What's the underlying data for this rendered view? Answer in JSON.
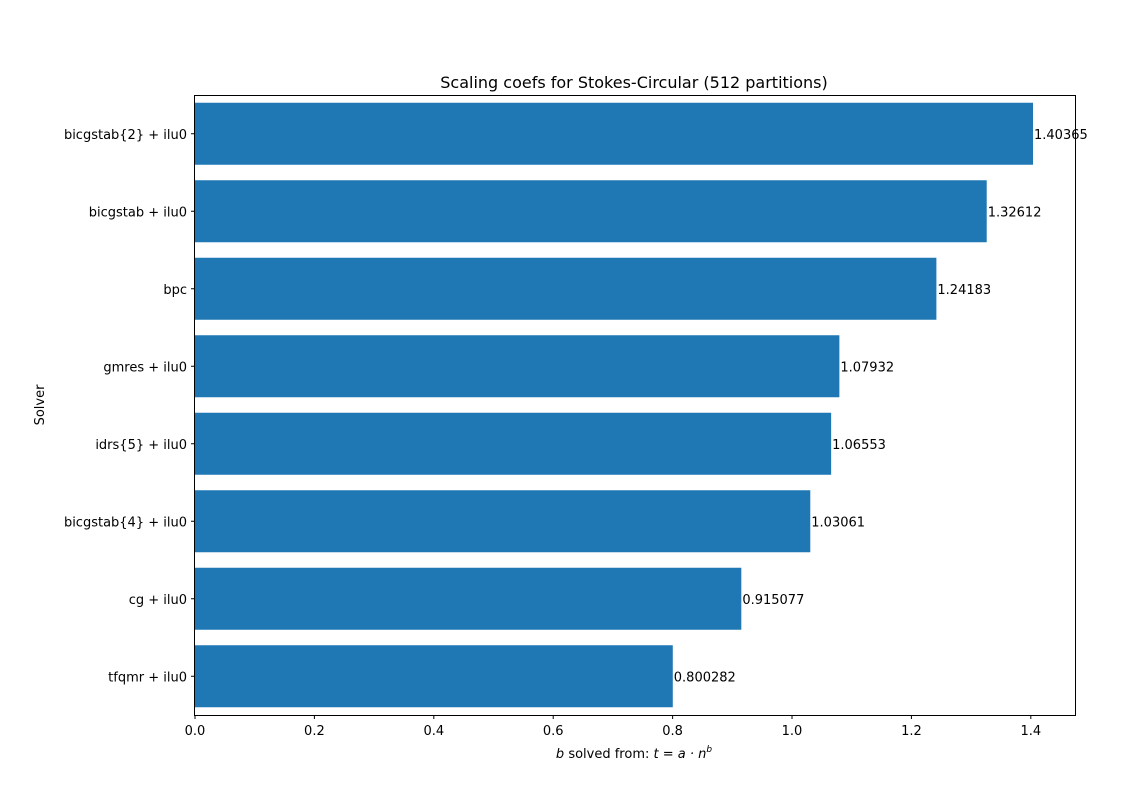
{
  "chart_data": {
    "type": "bar",
    "orientation": "horizontal",
    "title": "Scaling coefs for Stokes-Circular (512 partitions)",
    "xlabel": {
      "italic_var": "b",
      "text": " solved from: ",
      "equation": "t = a · n",
      "exponent": "b"
    },
    "ylabel": "Solver",
    "categories": [
      "bicgstab{2} + ilu0",
      "bicgstab + ilu0",
      "bpc",
      "gmres + ilu0",
      "idrs{5} + ilu0",
      "bicgstab{4} + ilu0",
      "cg + ilu0",
      "tfqmr + ilu0"
    ],
    "values": [
      1.40365,
      1.32612,
      1.24183,
      1.07932,
      1.06553,
      1.03061,
      0.915077,
      0.800282
    ],
    "value_labels": [
      "1.40365",
      "1.32612",
      "1.24183",
      "1.07932",
      "1.06553",
      "1.03061",
      "0.915077",
      "0.800282"
    ],
    "xlim": [
      0,
      1.474
    ],
    "xticks": [
      "0.0",
      "0.2",
      "0.4",
      "0.6",
      "0.8",
      "1.0",
      "1.2",
      "1.4"
    ],
    "bar_color": "#1f77b4",
    "grid": false,
    "legend": "none"
  }
}
